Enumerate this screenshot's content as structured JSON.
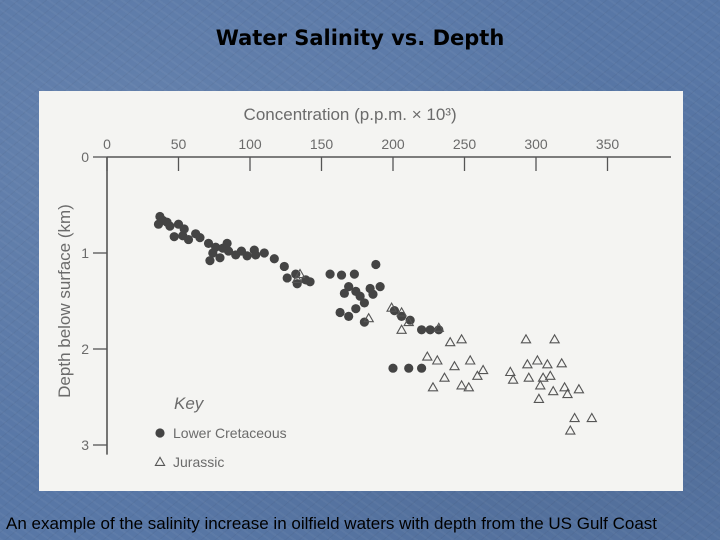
{
  "slide": {
    "title": "Water Salinity vs. Depth",
    "caption": "An example of the salinity increase in oilfield waters with depth from the US Gulf Coast"
  },
  "colors": {
    "background": "#5877a6",
    "panel": "#f4f4f2",
    "ink": "#555555",
    "axis_text": "#6b6b6b"
  },
  "chart_data": {
    "type": "scatter",
    "title": "",
    "xlabel": "Concentration (p.p.m. × 10³)",
    "ylabel": "Depth below surface (km)",
    "x_axis_position": "top",
    "y_inverted": true,
    "xlim": [
      0,
      375
    ],
    "ylim": [
      0,
      3.1
    ],
    "xticks": [
      0,
      50,
      100,
      150,
      200,
      250,
      300,
      350
    ],
    "yticks": [
      0,
      1,
      2,
      3
    ],
    "grid": false,
    "legend": {
      "title": "Key",
      "placement": "bottom-left",
      "entries": [
        {
          "label": "Lower Cretaceous",
          "marker": "filled-circle"
        },
        {
          "label": "Jurassic",
          "marker": "open-triangle"
        }
      ]
    },
    "series": [
      {
        "name": "Lower Cretaceous",
        "marker": "filled-circle",
        "points": [
          [
            37,
            0.62
          ],
          [
            39,
            0.66
          ],
          [
            36,
            0.7
          ],
          [
            42,
            0.68
          ],
          [
            44,
            0.72
          ],
          [
            50,
            0.7
          ],
          [
            54,
            0.75
          ],
          [
            47,
            0.83
          ],
          [
            53,
            0.82
          ],
          [
            57,
            0.86
          ],
          [
            62,
            0.8
          ],
          [
            65,
            0.84
          ],
          [
            71,
            0.9
          ],
          [
            76,
            0.94
          ],
          [
            81,
            0.95
          ],
          [
            84,
            0.9
          ],
          [
            85,
            0.98
          ],
          [
            74,
            1.0
          ],
          [
            79,
            1.05
          ],
          [
            72,
            1.08
          ],
          [
            90,
            1.02
          ],
          [
            94,
            0.98
          ],
          [
            98,
            1.03
          ],
          [
            103,
            0.97
          ],
          [
            104,
            1.02
          ],
          [
            110,
            1.0
          ],
          [
            117,
            1.06
          ],
          [
            124,
            1.14
          ],
          [
            132,
            1.22
          ],
          [
            126,
            1.26
          ],
          [
            139,
            1.28
          ],
          [
            142,
            1.3
          ],
          [
            133,
            1.32
          ],
          [
            156,
            1.22
          ],
          [
            164,
            1.23
          ],
          [
            173,
            1.22
          ],
          [
            169,
            1.35
          ],
          [
            174,
            1.4
          ],
          [
            166,
            1.42
          ],
          [
            177,
            1.45
          ],
          [
            180,
            1.52
          ],
          [
            184,
            1.37
          ],
          [
            186,
            1.43
          ],
          [
            191,
            1.35
          ],
          [
            188,
            1.12
          ],
          [
            174,
            1.58
          ],
          [
            163,
            1.62
          ],
          [
            169,
            1.66
          ],
          [
            180,
            1.72
          ],
          [
            201,
            1.6
          ],
          [
            206,
            1.66
          ],
          [
            212,
            1.7
          ],
          [
            220,
            1.8
          ],
          [
            226,
            1.8
          ],
          [
            232,
            1.8
          ],
          [
            200,
            2.2
          ],
          [
            211,
            2.2
          ],
          [
            220,
            2.2
          ]
        ]
      },
      {
        "name": "Jurassic",
        "marker": "open-triangle",
        "points": [
          [
            135,
            1.22
          ],
          [
            133,
            1.27
          ],
          [
            183,
            1.68
          ],
          [
            199,
            1.57
          ],
          [
            206,
            1.62
          ],
          [
            211,
            1.72
          ],
          [
            206,
            1.8
          ],
          [
            232,
            1.78
          ],
          [
            224,
            2.08
          ],
          [
            240,
            1.93
          ],
          [
            248,
            1.9
          ],
          [
            231,
            2.12
          ],
          [
            243,
            2.18
          ],
          [
            254,
            2.12
          ],
          [
            236,
            2.3
          ],
          [
            248,
            2.38
          ],
          [
            259,
            2.28
          ],
          [
            228,
            2.4
          ],
          [
            253,
            2.4
          ],
          [
            263,
            2.22
          ],
          [
            282,
            2.24
          ],
          [
            284,
            2.32
          ],
          [
            293,
            1.9
          ],
          [
            294,
            2.16
          ],
          [
            295,
            2.3
          ],
          [
            313,
            1.9
          ],
          [
            308,
            2.16
          ],
          [
            301,
            2.12
          ],
          [
            305,
            2.3
          ],
          [
            310,
            2.28
          ],
          [
            303,
            2.38
          ],
          [
            318,
            2.15
          ],
          [
            312,
            2.44
          ],
          [
            302,
            2.52
          ],
          [
            320,
            2.4
          ],
          [
            322,
            2.47
          ],
          [
            330,
            2.42
          ],
          [
            327,
            2.72
          ],
          [
            339,
            2.72
          ],
          [
            324,
            2.85
          ]
        ]
      }
    ]
  }
}
